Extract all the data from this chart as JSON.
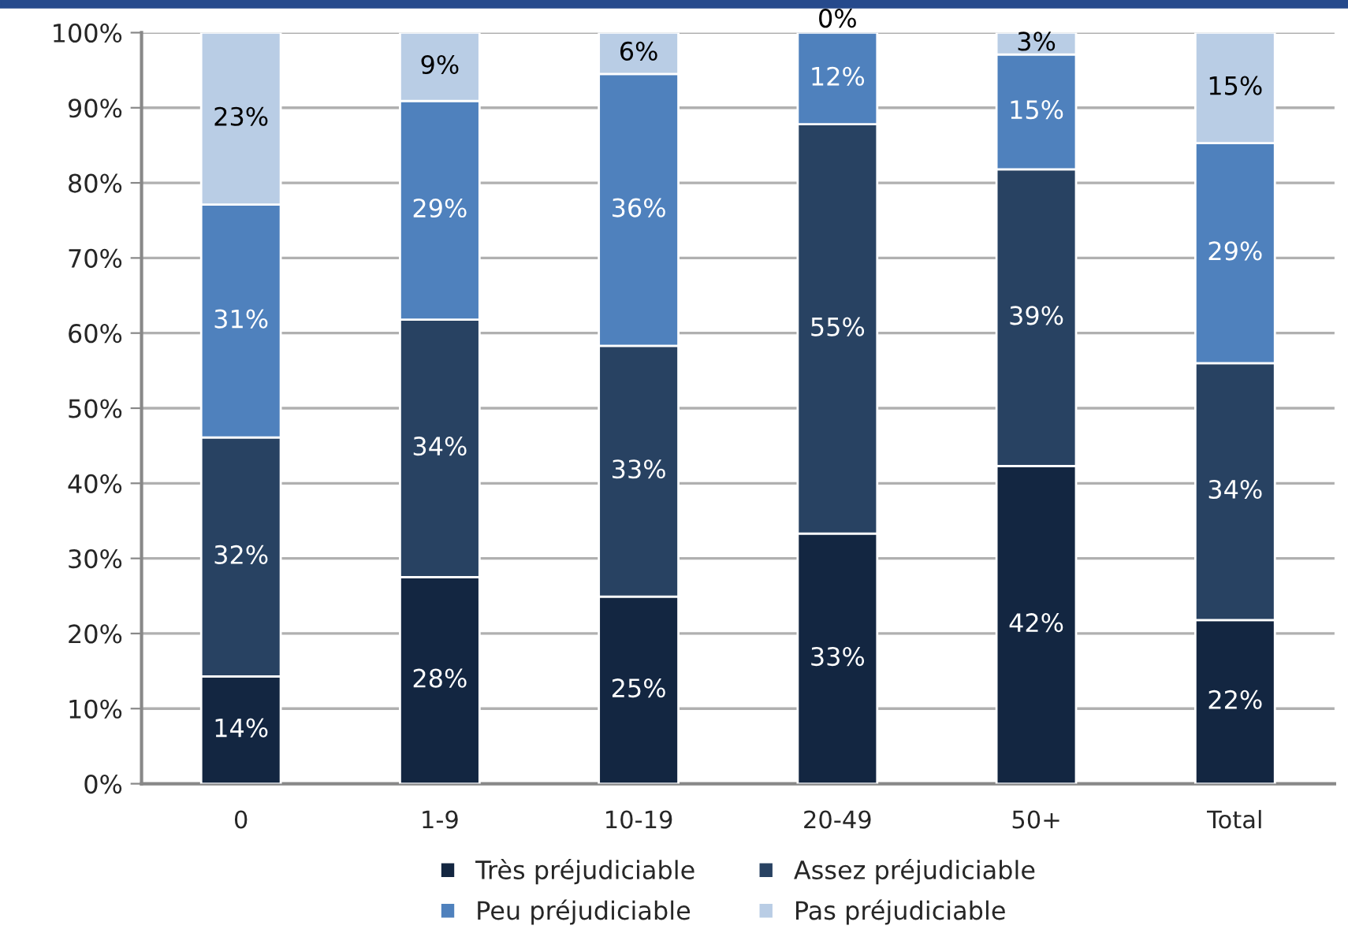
{
  "chart_data": {
    "type": "bar",
    "stacked": true,
    "categories": [
      "0",
      "1-9",
      "10-19",
      "20-49",
      "50+",
      "Total"
    ],
    "series": [
      {
        "name": "Très préjudiciable",
        "color": "#132641",
        "values": [
          14.3,
          27.5,
          24.9,
          33.3,
          42.3,
          21.8
        ],
        "value_labels": [
          "14%",
          "28%",
          "25%",
          "33%",
          "42%",
          "22%"
        ]
      },
      {
        "name": "Assez préjudiciable",
        "color": "#284262",
        "values": [
          31.8,
          34.3,
          33.4,
          54.5,
          39.5,
          34.2
        ],
        "value_labels": [
          "32%",
          "34%",
          "33%",
          "55%",
          "39%",
          "34%"
        ]
      },
      {
        "name": "Peu préjudiciable",
        "color": "#4f81bd",
        "values": [
          31.0,
          29.1,
          36.2,
          12.2,
          15.3,
          29.3
        ],
        "value_labels": [
          "31%",
          "29%",
          "36%",
          "12%",
          "15%",
          "29%"
        ]
      },
      {
        "name": "Pas préjudiciable",
        "color": "#b9cde5",
        "values": [
          22.9,
          9.1,
          5.5,
          0,
          2.9,
          14.7
        ],
        "value_labels": [
          "23%",
          "9%",
          "6%",
          "0%",
          "3%",
          "15%"
        ]
      }
    ],
    "ylim": [
      0,
      100
    ],
    "yticks": [
      {
        "value": 0,
        "label": "0%"
      },
      {
        "value": 10,
        "label": "10%"
      },
      {
        "value": 20,
        "label": "20%"
      },
      {
        "value": 30,
        "label": "30%"
      },
      {
        "value": 40,
        "label": "40%"
      },
      {
        "value": 50,
        "label": "50%"
      },
      {
        "value": 60,
        "label": "60%"
      },
      {
        "value": 70,
        "label": "70%"
      },
      {
        "value": 80,
        "label": "80%"
      },
      {
        "value": 90,
        "label": "90%"
      },
      {
        "value": 100,
        "label": "100%"
      }
    ],
    "grid": "y",
    "legend": "bottom"
  }
}
